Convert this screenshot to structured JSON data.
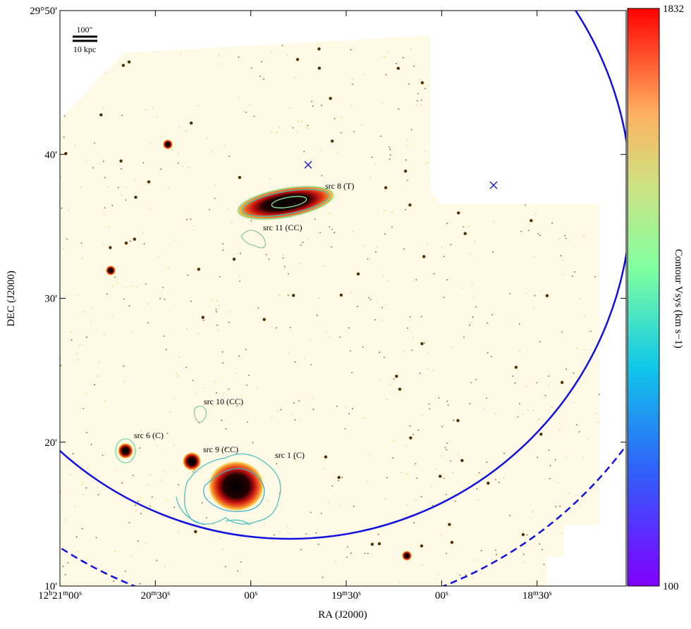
{
  "chart_data": {
    "type": "image",
    "xlabel": "RA (J2000)",
    "ylabel": "DEC (J2000)",
    "xlim": [
      180,
      2
    ],
    "ylim": [
      10,
      50
    ],
    "xticks": [
      {
        "value": 180,
        "label": "12h21m00s"
      },
      {
        "value": 150,
        "label": "20m30s"
      },
      {
        "value": 120,
        "label": "00s"
      },
      {
        "value": 90,
        "label": "19m30s"
      },
      {
        "value": 60,
        "label": "00s"
      },
      {
        "value": 30,
        "label": "18m30s"
      }
    ],
    "yticks": [
      {
        "value": 50,
        "label": "29°50'"
      },
      {
        "value": 40,
        "label": "40'"
      },
      {
        "value": 30,
        "label": "30'"
      },
      {
        "value": 20,
        "label": "20'"
      },
      {
        "value": 10,
        "label": "10'"
      }
    ],
    "colorbar": {
      "label": "Contour Vsys (km s−1)",
      "lim": [
        100,
        1832
      ],
      "ticks": [
        100,
        1832
      ]
    },
    "scale_bar": {
      "angular": "100\"",
      "physical": "10 kpc"
    },
    "annotations": [
      "src 8 (T)",
      "src 11 (CC)",
      "src 10 (CC)",
      "src 6 (C)",
      "src 9 (CC)",
      "src 1 (C)"
    ]
  }
}
